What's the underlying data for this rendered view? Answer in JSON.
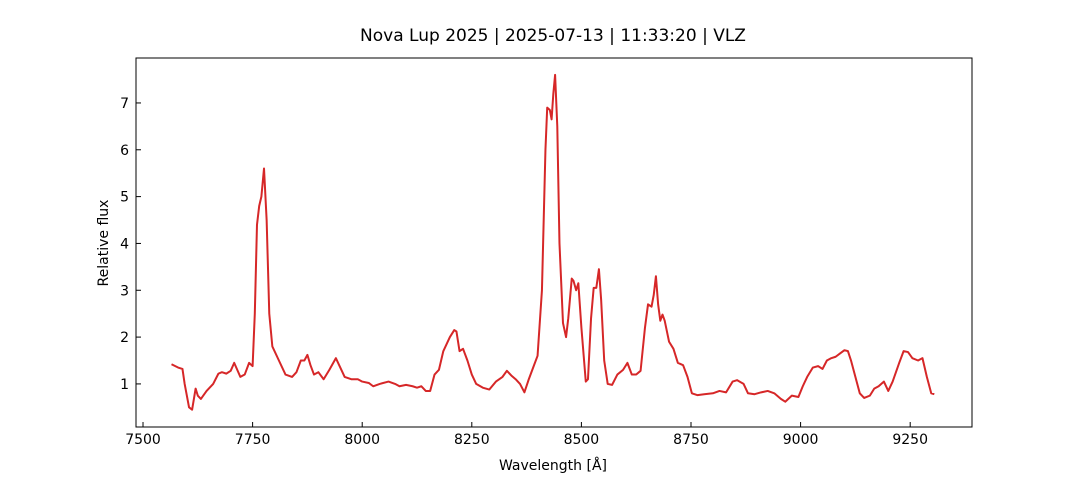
{
  "chart_data": {
    "type": "line",
    "title": "Nova Lup 2025 | 2025-07-13 | 11:33:20 | VLZ",
    "x_label": "Wavelength [Å]",
    "y_label": "Relative flux",
    "color": "#d62728",
    "xlim": [
      7484,
      9391
    ],
    "ylim": [
      0.08,
      7.96
    ],
    "xticks": [
      7500,
      7750,
      8000,
      8250,
      8500,
      8750,
      9000,
      9250
    ],
    "yticks": [
      1,
      2,
      3,
      4,
      5,
      6,
      7
    ],
    "grid": false,
    "x": [
      7565,
      7580,
      7590,
      7595,
      7605,
      7612,
      7620,
      7625,
      7632,
      7645,
      7660,
      7672,
      7680,
      7690,
      7700,
      7708,
      7715,
      7722,
      7732,
      7742,
      7750,
      7755,
      7760,
      7765,
      7770,
      7776,
      7782,
      7788,
      7795,
      7810,
      7825,
      7840,
      7850,
      7860,
      7868,
      7875,
      7882,
      7890,
      7900,
      7912,
      7925,
      7940,
      7950,
      7960,
      7975,
      7990,
      8000,
      8015,
      8025,
      8040,
      8060,
      8075,
      8085,
      8100,
      8115,
      8125,
      8135,
      8145,
      8155,
      8165,
      8175,
      8185,
      8200,
      8210,
      8215,
      8222,
      8230,
      8240,
      8250,
      8260,
      8275,
      8290,
      8305,
      8320,
      8330,
      8340,
      8350,
      8360,
      8370,
      8380,
      8390,
      8400,
      8410,
      8418,
      8422,
      8428,
      8432,
      8436,
      8440,
      8445,
      8450,
      8458,
      8465,
      8470,
      8478,
      8482,
      8488,
      8493,
      8500,
      8510,
      8515,
      8522,
      8528,
      8534,
      8540,
      8545,
      8552,
      8560,
      8570,
      8582,
      8595,
      8605,
      8615,
      8625,
      8635,
      8645,
      8652,
      8660,
      8665,
      8670,
      8675,
      8680,
      8685,
      8690,
      8700,
      8710,
      8720,
      8732,
      8742,
      8752,
      8765,
      8780,
      8800,
      8815,
      8830,
      8845,
      8855,
      8870,
      8880,
      8895,
      8910,
      8925,
      8940,
      8955,
      8965,
      8980,
      8995,
      9005,
      9015,
      9028,
      9040,
      9050,
      9060,
      9070,
      9080,
      9090,
      9100,
      9108,
      9115,
      9125,
      9135,
      9145,
      9158,
      9168,
      9178,
      9190,
      9200,
      9210,
      9225,
      9235,
      9245,
      9255,
      9268,
      9278,
      9288,
      9298,
      9305
    ],
    "values": [
      1.42,
      1.35,
      1.32,
      1.0,
      0.5,
      0.45,
      0.9,
      0.75,
      0.68,
      0.85,
      1.0,
      1.22,
      1.25,
      1.22,
      1.28,
      1.45,
      1.3,
      1.15,
      1.2,
      1.45,
      1.38,
      2.5,
      4.4,
      4.8,
      5.0,
      5.6,
      4.5,
      2.5,
      1.8,
      1.5,
      1.2,
      1.15,
      1.25,
      1.5,
      1.5,
      1.62,
      1.4,
      1.2,
      1.25,
      1.1,
      1.3,
      1.55,
      1.35,
      1.15,
      1.1,
      1.1,
      1.05,
      1.02,
      0.95,
      1.0,
      1.05,
      1.0,
      0.95,
      0.98,
      0.95,
      0.92,
      0.95,
      0.85,
      0.85,
      1.2,
      1.3,
      1.7,
      2.0,
      2.15,
      2.12,
      1.7,
      1.75,
      1.5,
      1.2,
      1.0,
      0.92,
      0.88,
      1.05,
      1.15,
      1.28,
      1.18,
      1.1,
      1.0,
      0.82,
      1.1,
      1.35,
      1.6,
      3.0,
      6.0,
      6.9,
      6.85,
      6.65,
      7.2,
      7.6,
      6.5,
      4.0,
      2.3,
      2.0,
      2.4,
      3.25,
      3.2,
      3.0,
      3.15,
      2.2,
      1.05,
      1.1,
      2.4,
      3.05,
      3.05,
      3.45,
      2.8,
      1.5,
      1.0,
      0.98,
      1.2,
      1.3,
      1.45,
      1.2,
      1.2,
      1.28,
      2.2,
      2.7,
      2.65,
      2.9,
      3.3,
      2.7,
      2.35,
      2.48,
      2.35,
      1.9,
      1.75,
      1.45,
      1.4,
      1.15,
      0.8,
      0.76,
      0.78,
      0.8,
      0.85,
      0.82,
      1.05,
      1.08,
      1.0,
      0.8,
      0.78,
      0.82,
      0.85,
      0.8,
      0.68,
      0.62,
      0.75,
      0.72,
      0.95,
      1.15,
      1.35,
      1.38,
      1.32,
      1.5,
      1.55,
      1.58,
      1.65,
      1.72,
      1.7,
      1.5,
      1.15,
      0.8,
      0.7,
      0.75,
      0.9,
      0.95,
      1.05,
      0.85,
      1.05,
      1.45,
      1.7,
      1.68,
      1.55,
      1.5,
      1.55,
      1.15,
      0.8,
      0.78
    ]
  }
}
